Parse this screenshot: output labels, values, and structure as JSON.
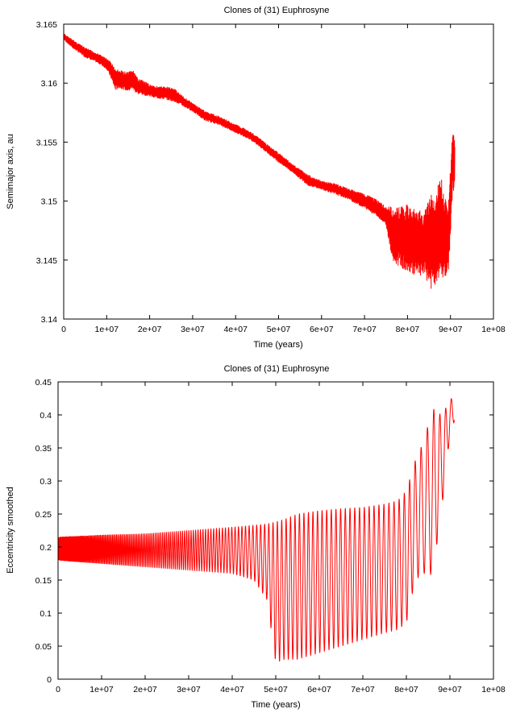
{
  "chart_data": [
    {
      "type": "line",
      "title": "Clones of (31) Euphrosyne",
      "xlabel": "Time (years)",
      "ylabel": "Semimajor axis, au",
      "xlim": [
        0,
        100000000
      ],
      "ylim": [
        3.14,
        3.165
      ],
      "xticks": [
        "0",
        "1e+07",
        "2e+07",
        "3e+07",
        "4e+07",
        "5e+07",
        "6e+07",
        "7e+07",
        "8e+07",
        "9e+07",
        "1e+08"
      ],
      "yticks": [
        "3.14",
        "3.145",
        "3.15",
        "3.155",
        "3.16",
        "3.165"
      ],
      "grid": false,
      "series": [
        {
          "color": "#ff0000",
          "x_envelope": [
            0,
            2000000,
            5000000,
            8000000,
            10000000,
            11000000,
            12000000,
            13000000,
            15000000,
            16000000,
            17000000,
            20000000,
            22000000,
            24000000,
            26000000,
            27000000,
            30000000,
            33000000,
            36000000,
            40000000,
            43000000,
            46000000,
            48000000,
            50000000,
            53000000,
            55000000,
            57000000,
            60000000,
            63000000,
            66000000,
            70000000,
            73000000,
            75000000,
            76500000,
            78000000,
            80000000,
            82000000,
            84000000,
            85500000,
            86500000,
            87500000,
            88500000,
            89500000,
            90500000,
            91000000
          ],
          "upper": [
            3.1642,
            3.1637,
            3.163,
            3.1625,
            3.1621,
            3.1618,
            3.1612,
            3.1611,
            3.1609,
            3.1612,
            3.1605,
            3.1599,
            3.1597,
            3.1597,
            3.1595,
            3.1591,
            3.1583,
            3.1576,
            3.1572,
            3.1565,
            3.156,
            3.1552,
            3.1546,
            3.1541,
            3.1532,
            3.1527,
            3.1522,
            3.1517,
            3.1515,
            3.1511,
            3.1506,
            3.1501,
            3.1495,
            3.1496,
            3.1495,
            3.1497,
            3.1492,
            3.1492,
            3.1508,
            3.1497,
            3.153,
            3.1504,
            3.1497,
            3.1563,
            3.1555
          ],
          "lower": [
            3.1637,
            3.163,
            3.1622,
            3.1617,
            3.1612,
            3.1604,
            3.1594,
            3.1596,
            3.1593,
            3.1595,
            3.1591,
            3.1589,
            3.1587,
            3.1586,
            3.1584,
            3.1582,
            3.1576,
            3.1568,
            3.1565,
            3.1558,
            3.1553,
            3.1545,
            3.1539,
            3.1533,
            3.1525,
            3.1519,
            3.1513,
            3.151,
            3.1506,
            3.1502,
            3.1494,
            3.1487,
            3.148,
            3.1447,
            3.1445,
            3.144,
            3.1437,
            3.1436,
            3.1425,
            3.1426,
            3.1437,
            3.1435,
            3.1437,
            3.1505,
            3.1513
          ]
        }
      ]
    },
    {
      "type": "line",
      "title": "Clones of (31) Euphrosyne",
      "xlabel": "Time (years)",
      "ylabel": "Eccentricity smoothed",
      "xlim": [
        0,
        100000000
      ],
      "ylim": [
        0,
        0.45
      ],
      "xticks": [
        "0",
        "1e+07",
        "2e+07",
        "3e+07",
        "4e+07",
        "5e+07",
        "6e+07",
        "7e+07",
        "8e+07",
        "9e+07",
        "1e+08"
      ],
      "yticks": [
        "0",
        "0.05",
        "0.1",
        "0.15",
        "0.2",
        "0.25",
        "0.3",
        "0.35",
        "0.4",
        "0.45"
      ],
      "grid": false,
      "series": [
        {
          "color": "#ff0000",
          "oscillation": {
            "x_knots": [
              0,
              10000000,
              20000000,
              30000000,
              40000000,
              45000000,
              48000000,
              50000000,
              52000000,
              55000000,
              60000000,
              65000000,
              70000000,
              75000000,
              78000000,
              80000000,
              82000000,
              84000000,
              86000000,
              88000000,
              90000000,
              91000000
            ],
            "upper": [
              0.215,
              0.218,
              0.22,
              0.225,
              0.23,
              0.233,
              0.235,
              0.238,
              0.242,
              0.25,
              0.255,
              0.258,
              0.26,
              0.265,
              0.27,
              0.285,
              0.33,
              0.36,
              0.41,
              0.4,
              0.42,
              0.435
            ],
            "lower": [
              0.18,
              0.175,
              0.17,
              0.165,
              0.16,
              0.15,
              0.12,
              0.025,
              0.03,
              0.03,
              0.04,
              0.05,
              0.06,
              0.07,
              0.075,
              0.085,
              0.15,
              0.16,
              0.158,
              0.25,
              0.37,
              0.39
            ],
            "period_knots": [
              0,
              30000000,
              50000000,
              70000000,
              80000000,
              85000000,
              91000000
            ],
            "period": [
              150000,
              500000,
              1000000,
              1100000,
              1200000,
              1500000,
              1200000
            ]
          }
        }
      ]
    }
  ]
}
